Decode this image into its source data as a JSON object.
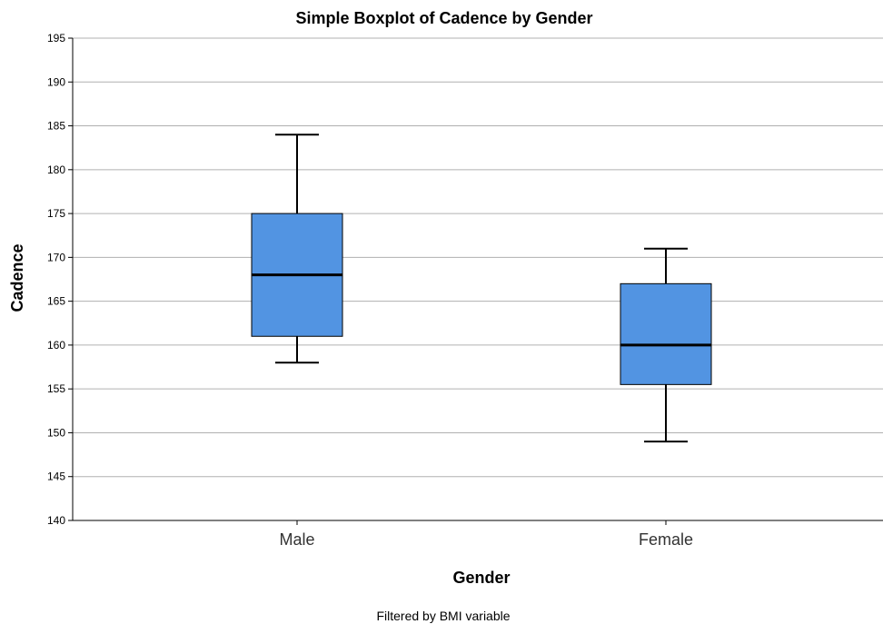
{
  "chart_data": {
    "type": "boxplot",
    "title": "Simple Boxplot of Cadence by Gender",
    "xlabel": "Gender",
    "ylabel": "Cadence",
    "footnote": "Filtered by BMI variable",
    "ylim": [
      140,
      195
    ],
    "yticks": [
      140,
      145,
      150,
      155,
      160,
      165,
      170,
      175,
      180,
      185,
      190,
      195
    ],
    "ytick_labels": [
      "140",
      "145",
      "150",
      "155",
      "160",
      "165",
      "170",
      "175",
      "180",
      "185",
      "190",
      "195"
    ],
    "grid": true,
    "categories": [
      "Male",
      "Female"
    ],
    "boxes": [
      {
        "category": "Male",
        "whisker_low": 158,
        "q1": 161,
        "median": 168,
        "q3": 175,
        "whisker_high": 184
      },
      {
        "category": "Female",
        "whisker_low": 149,
        "q1": 155.5,
        "median": 160,
        "q3": 167,
        "whisker_high": 171
      }
    ]
  },
  "colors": {
    "box_fill": "#5294E2",
    "box_stroke": "#000000",
    "median": "#000000",
    "whisker": "#000000",
    "gridline": "#B0B0B0",
    "axis": "#000000"
  }
}
